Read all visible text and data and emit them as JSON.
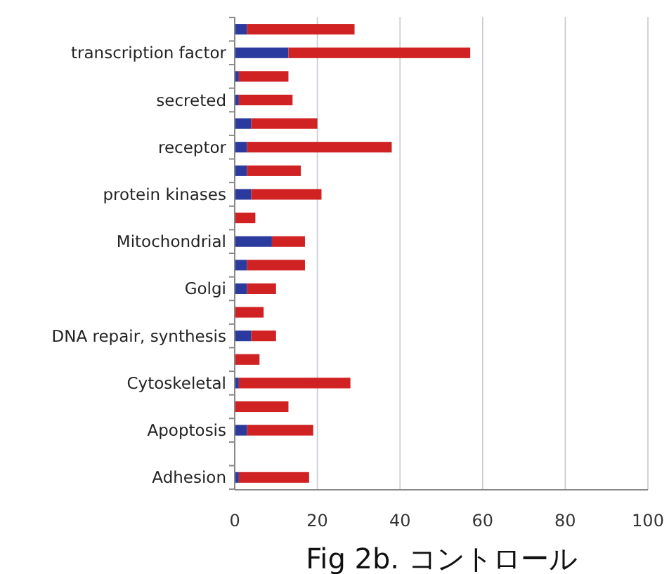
{
  "chart_data": {
    "type": "bar",
    "orientation": "horizontal",
    "stacked": true,
    "title": "Fig 2b. コントロール",
    "categories": [
      null,
      "transcription factor",
      null,
      "secreted",
      null,
      "receptor",
      null,
      "protein kinases",
      null,
      "Mitochondrial",
      null,
      "Golgi",
      null,
      "DNA repair, synthesis",
      null,
      "Cytoskeletal",
      null,
      "Apoptosis",
      null,
      "Adhesion"
    ],
    "series": [
      {
        "color": "#2b3a9e",
        "values": [
          3,
          13,
          1,
          1,
          4,
          3,
          3,
          4,
          0,
          9,
          3,
          3,
          0,
          4,
          0,
          1,
          0,
          3,
          null,
          1
        ]
      },
      {
        "color": "#d02222",
        "values": [
          26,
          44,
          12,
          13,
          16,
          35,
          13,
          17,
          5,
          8,
          14,
          7,
          7,
          6,
          6,
          27,
          13,
          16,
          null,
          17
        ]
      }
    ],
    "xlim": [
      0,
      100
    ],
    "xticks": [
      0,
      20,
      40,
      60,
      80,
      100
    ],
    "grid": "x"
  }
}
